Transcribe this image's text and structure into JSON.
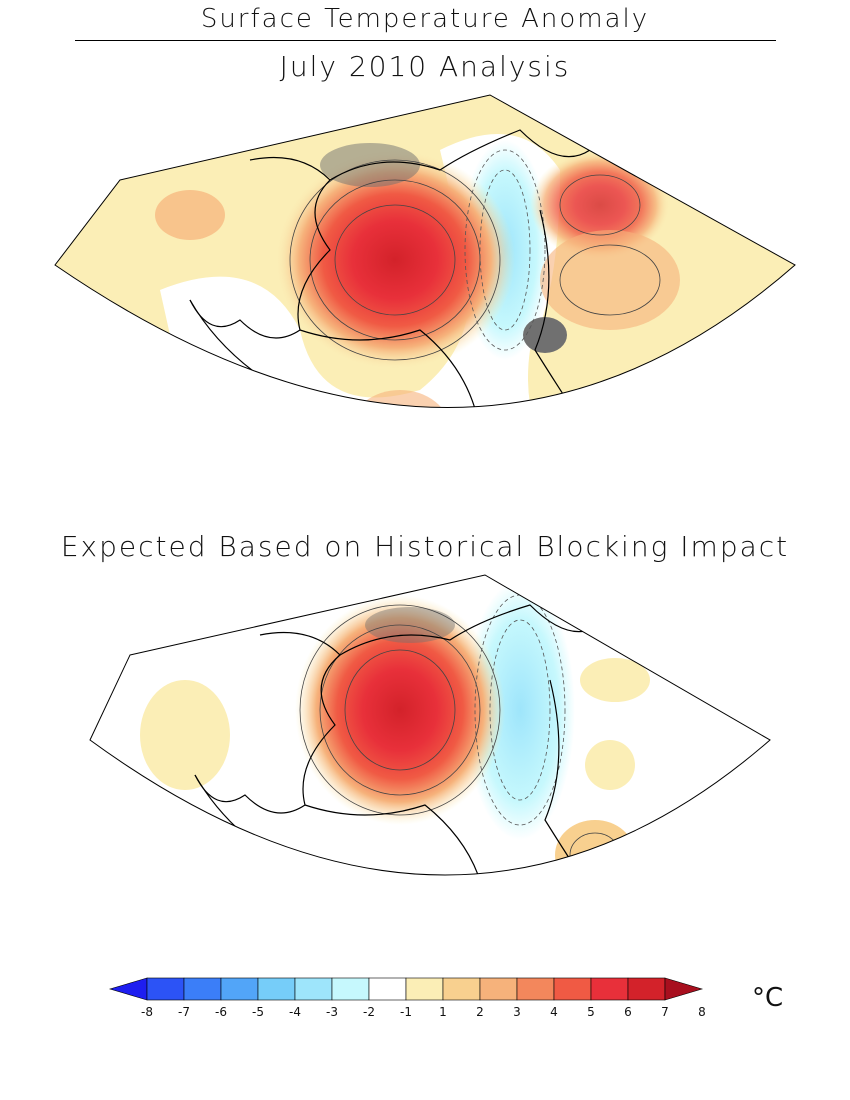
{
  "header": {
    "title": "Surface Temperature Anomaly",
    "panel_top_title": "July 2010 Analysis",
    "panel_bottom_title": "Expected Based on Historical Blocking Impact"
  },
  "colorbar": {
    "unit": "°C",
    "tick_labels": [
      "-8",
      "-7",
      "-6",
      "-5",
      "-4",
      "-3",
      "-2",
      "-1",
      "1",
      "2",
      "3",
      "4",
      "5",
      "6",
      "7",
      "8"
    ],
    "colors": [
      "#1e1ef0",
      "#2c53f6",
      "#3b7ef8",
      "#52a5f8",
      "#76cdf9",
      "#9ee5fb",
      "#c6f8fd",
      "#ffffff",
      "#fbeeb6",
      "#f8d08f",
      "#f6b27b",
      "#f3875c",
      "#f05a44",
      "#e8303a",
      "#d3222a",
      "#a80f1e"
    ]
  },
  "palette": {
    "warm_light": "#fbeeb6",
    "warm_mid": "#f6b27b",
    "warm_strong": "#f05a44",
    "warm_core": "#d3222a",
    "cool_light": "#c6f8fd",
    "cool_mid": "#9ee5fb",
    "grey_ice": "#707070"
  }
}
